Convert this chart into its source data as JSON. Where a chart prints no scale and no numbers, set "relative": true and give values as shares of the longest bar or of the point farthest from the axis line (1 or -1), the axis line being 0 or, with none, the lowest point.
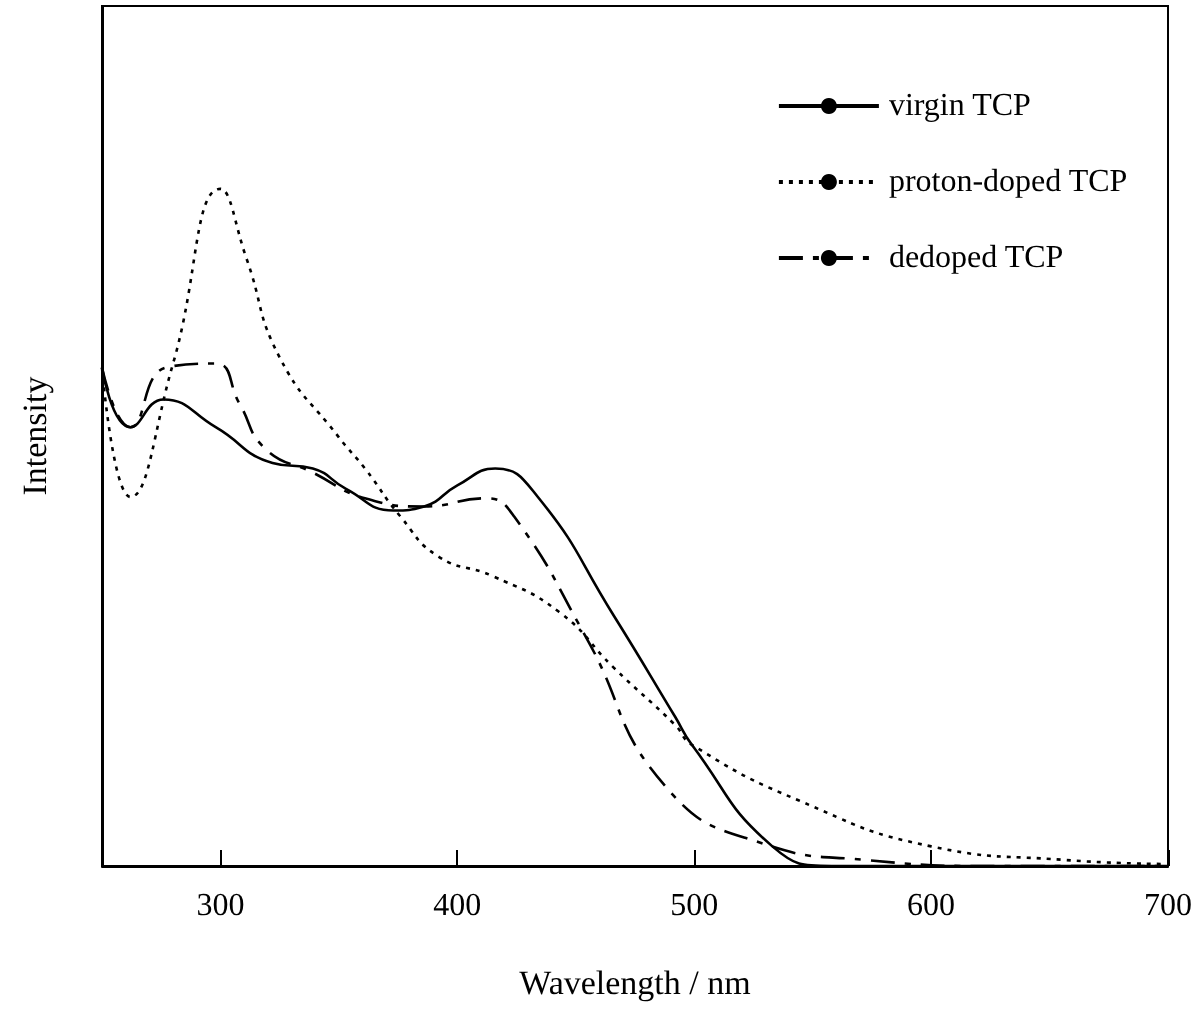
{
  "chart_data": {
    "type": "line",
    "xlabel": "Wavelength / nm",
    "ylabel": "Intensity",
    "relative": true,
    "xlim": [
      250,
      700
    ],
    "xticks": [
      300,
      400,
      500,
      600,
      700
    ],
    "grid": false,
    "legend": "top right",
    "marker": "none",
    "series": [
      {
        "name": "virgin TCP",
        "color": "#000000",
        "line_style": "solid",
        "x": [
          250,
          262,
          276,
          298,
          322,
          339,
          353,
          373,
          386,
          400,
          416,
          434,
          466,
          492,
          499,
          533,
          558,
          600,
          650,
          700
        ],
        "values": [
          0.736,
          0.648,
          0.689,
          0.648,
          0.595,
          0.587,
          0.557,
          0.525,
          0.531,
          0.562,
          0.587,
          0.545,
          0.37,
          0.22,
          0.179,
          0.029,
          0.0,
          0.0,
          0.0,
          0.0
        ]
      },
      {
        "name": "proton-doped TCP",
        "color": "#000000",
        "line_style": "dotted",
        "x": [
          250,
          262,
          280,
          300,
          311,
          325,
          350,
          361,
          376,
          392,
          415,
          443,
          466,
          492,
          499,
          544,
          600,
          656,
          698
        ],
        "values": [
          0.736,
          0.545,
          0.742,
          1.0,
          0.897,
          0.751,
          0.633,
          0.587,
          0.516,
          0.457,
          0.428,
          0.375,
          0.293,
          0.208,
          0.179,
          0.097,
          0.029,
          0.009,
          0.003
        ]
      },
      {
        "name": "dedoped TCP",
        "color": "#000000",
        "line_style": "dashed",
        "x": [
          250,
          262,
          277,
          298,
          308,
          319,
          339,
          361,
          386,
          412,
          424,
          454,
          488,
          530,
          572,
          628,
          700
        ],
        "values": [
          0.736,
          0.648,
          0.736,
          0.742,
          0.683,
          0.616,
          0.581,
          0.543,
          0.531,
          0.543,
          0.516,
          0.34,
          0.117,
          0.032,
          0.009,
          0.0,
          0.0
        ]
      }
    ]
  }
}
